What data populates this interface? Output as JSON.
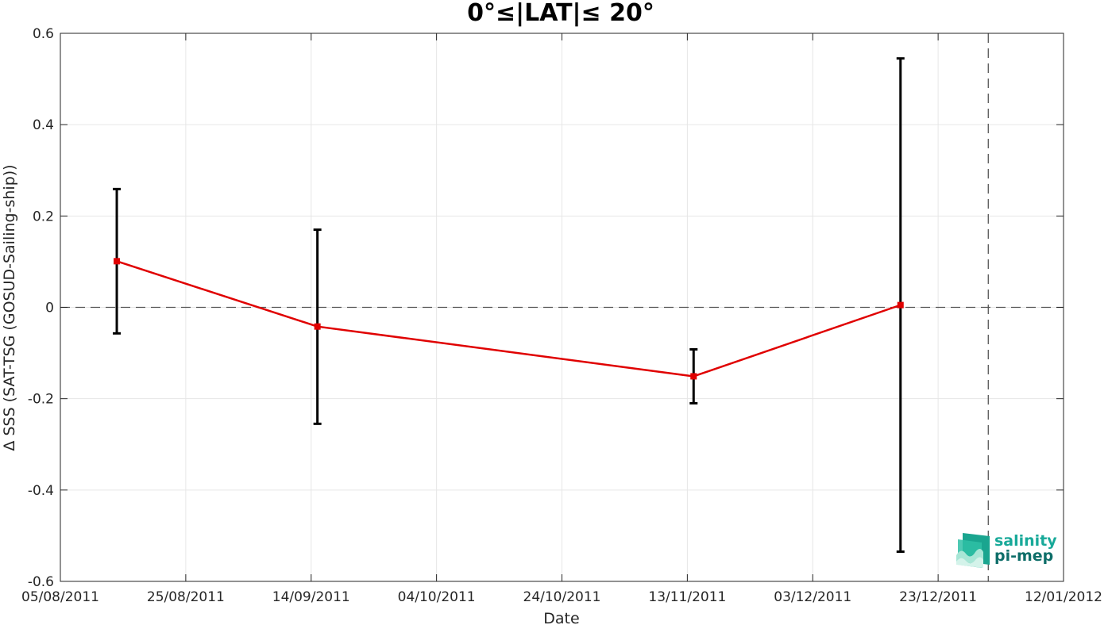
{
  "chart_data": {
    "type": "line",
    "title": "0°≤|LAT|≤ 20°",
    "xlabel": "Date",
    "ylabel": "Δ SSS (SAT-TSG (GOSUD-Sailing-ship))",
    "xlim": [
      "2011-08-05",
      "2012-01-12"
    ],
    "ylim": [
      -0.6,
      0.6
    ],
    "x_ticks": [
      "05/08/2011",
      "25/08/2011",
      "14/09/2011",
      "04/10/2011",
      "24/10/2011",
      "13/11/2011",
      "03/12/2011",
      "23/12/2011",
      "12/01/2012"
    ],
    "y_ticks": [
      0.6,
      0.4,
      0.2,
      0,
      -0.2,
      -0.4,
      -0.6
    ],
    "y_tick_labels": [
      "0.6",
      "0.4",
      "0.2",
      "0",
      "-0.2",
      "-0.4",
      "-0.6"
    ],
    "grid": true,
    "series": [
      {
        "x": [
          "2011-08-14",
          "2011-09-15",
          "2011-11-14",
          "2011-12-17"
        ],
        "y": [
          0.101,
          -0.042,
          -0.151,
          0.005
        ],
        "err_low": [
          -0.057,
          -0.255,
          -0.21,
          -0.535
        ],
        "err_high": [
          0.259,
          0.17,
          -0.092,
          0.545
        ],
        "color": "#e00000",
        "marker": "square"
      }
    ],
    "reference_lines": [
      {
        "orientation": "horizontal",
        "y": 0,
        "style": "dashed"
      },
      {
        "orientation": "vertical",
        "x": "2011-12-31",
        "style": "dashed"
      }
    ],
    "colors": {
      "line": "#e00000",
      "errorbar": "#000000",
      "grid": "#e6e6e6",
      "axes": "#262626"
    }
  },
  "logo": {
    "line1": "salinity",
    "line2": "pi-mep",
    "color1": "#18a999",
    "color2": "#0e6e69"
  }
}
